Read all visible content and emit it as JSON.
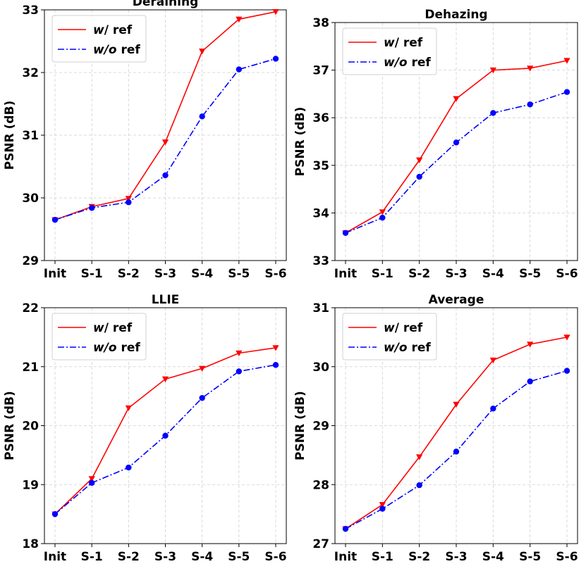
{
  "chart_data": [
    {
      "type": "line",
      "title": "Deraining",
      "xlabel": "",
      "ylabel": "PSNR (dB)",
      "categories": [
        "Init",
        "S-1",
        "S-2",
        "S-3",
        "S-4",
        "S-5",
        "S-6"
      ],
      "ylim": [
        29,
        33
      ],
      "yticks": [
        29,
        30,
        31,
        32,
        33
      ],
      "grid": true,
      "legend": "top-left",
      "series": [
        {
          "name_prefix": "w",
          "name_suffix": "/ ref",
          "color": "#ff0000",
          "style": "solid",
          "marker": "triangle-down",
          "values": [
            29.65,
            29.86,
            29.99,
            30.89,
            32.34,
            32.85,
            32.97
          ]
        },
        {
          "name_prefix": "w/o",
          "name_suffix": " ref",
          "color": "#0000ff",
          "style": "dashdot",
          "marker": "circle",
          "values": [
            29.65,
            29.84,
            29.93,
            30.36,
            31.3,
            32.05,
            32.22
          ]
        }
      ]
    },
    {
      "type": "line",
      "title": "Dehazing",
      "xlabel": "",
      "ylabel": "PSNR (dB)",
      "categories": [
        "Init",
        "S-1",
        "S-2",
        "S-3",
        "S-4",
        "S-5",
        "S-6"
      ],
      "ylim": [
        33,
        38
      ],
      "yticks": [
        33,
        34,
        35,
        36,
        37,
        38
      ],
      "grid": true,
      "legend": "top-left",
      "series": [
        {
          "name_prefix": "w",
          "name_suffix": "/ ref",
          "color": "#ff0000",
          "style": "solid",
          "marker": "triangle-down",
          "values": [
            33.58,
            34.02,
            35.11,
            36.4,
            37.0,
            37.04,
            37.2
          ]
        },
        {
          "name_prefix": "w/o",
          "name_suffix": " ref",
          "color": "#0000ff",
          "style": "dashdot",
          "marker": "circle",
          "values": [
            33.58,
            33.9,
            34.76,
            35.48,
            36.1,
            36.28,
            36.54
          ]
        }
      ]
    },
    {
      "type": "line",
      "title": "LLIE",
      "xlabel": "",
      "ylabel": "PSNR (dB)",
      "categories": [
        "Init",
        "S-1",
        "S-2",
        "S-3",
        "S-4",
        "S-5",
        "S-6"
      ],
      "ylim": [
        18,
        22
      ],
      "yticks": [
        18,
        19,
        20,
        21,
        22
      ],
      "grid": true,
      "legend": "top-left",
      "series": [
        {
          "name_prefix": "w",
          "name_suffix": "/ ref",
          "color": "#ff0000",
          "style": "solid",
          "marker": "triangle-down",
          "values": [
            18.5,
            19.1,
            20.3,
            20.79,
            20.97,
            21.23,
            21.32
          ]
        },
        {
          "name_prefix": "w/o",
          "name_suffix": " ref",
          "color": "#0000ff",
          "style": "dashdot",
          "marker": "circle",
          "values": [
            18.5,
            19.03,
            19.29,
            19.83,
            20.47,
            20.92,
            21.03
          ]
        }
      ]
    },
    {
      "type": "line",
      "title": "Average",
      "xlabel": "",
      "ylabel": "PSNR (dB)",
      "categories": [
        "Init",
        "S-1",
        "S-2",
        "S-3",
        "S-4",
        "S-5",
        "S-6"
      ],
      "ylim": [
        27,
        31
      ],
      "yticks": [
        27,
        28,
        29,
        30,
        31
      ],
      "grid": true,
      "legend": "top-left",
      "series": [
        {
          "name_prefix": "w",
          "name_suffix": "/ ref",
          "color": "#ff0000",
          "style": "solid",
          "marker": "triangle-down",
          "values": [
            27.25,
            27.66,
            28.47,
            29.36,
            30.11,
            30.38,
            30.5
          ]
        },
        {
          "name_prefix": "w/o",
          "name_suffix": " ref",
          "color": "#0000ff",
          "style": "dashdot",
          "marker": "circle",
          "values": [
            27.25,
            27.59,
            27.99,
            28.56,
            29.29,
            29.75,
            29.93
          ]
        }
      ]
    }
  ]
}
